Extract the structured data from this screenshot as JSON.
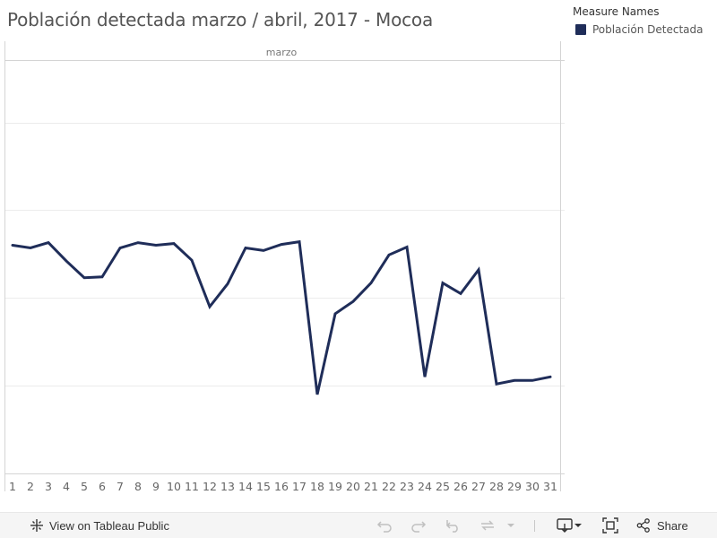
{
  "header": {
    "title": "Población detectada marzo / abril, 2017 - Mocoa"
  },
  "legend": {
    "title": "Measure Names",
    "items": [
      {
        "label": "Población Detectada",
        "color": "#1f2d59"
      }
    ]
  },
  "chart_data": {
    "type": "line",
    "panel_label": "marzo",
    "x": [
      1,
      2,
      3,
      4,
      5,
      6,
      7,
      8,
      9,
      10,
      11,
      12,
      13,
      14,
      15,
      16,
      17,
      18,
      19,
      20,
      21,
      22,
      23,
      24,
      25,
      26,
      27,
      28,
      29,
      30,
      31
    ],
    "series": [
      {
        "name": "Población Detectada",
        "color": "#1f2d59",
        "values": [
          2.6,
          2.57,
          2.63,
          2.42,
          2.23,
          2.24,
          2.57,
          2.63,
          2.6,
          2.62,
          2.43,
          1.9,
          2.16,
          2.57,
          2.54,
          2.61,
          2.64,
          0.9,
          1.82,
          1.96,
          2.17,
          2.49,
          2.58,
          1.1,
          2.17,
          2.05,
          2.32,
          1.02,
          1.06,
          1.06,
          1.1
        ]
      }
    ],
    "ylim": [
      0,
      4.7
    ],
    "y_gridlines": [
      1,
      2,
      3,
      4
    ],
    "y_tick_labels": false,
    "grid": true
  },
  "toolbar": {
    "view_label": "View on Tableau Public",
    "share_label": "Share",
    "colors": {
      "enabled": "#333333",
      "disabled": "#c0c0c0"
    }
  }
}
